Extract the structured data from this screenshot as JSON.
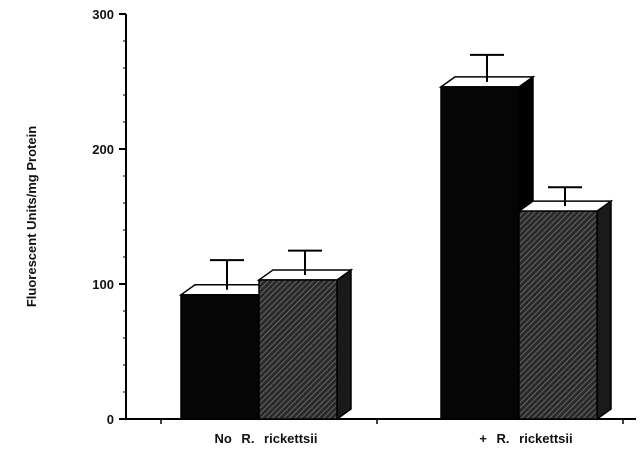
{
  "chart_data": {
    "type": "bar",
    "title": "",
    "ylabel": "Fluorescent  Units/mg  Protein",
    "xlabel": "",
    "ylim": [
      0,
      300
    ],
    "yticks": [
      "0",
      "100",
      "200",
      "300"
    ],
    "categories": [
      "No  R.  rickettsii",
      "+  R.  rickettsii"
    ],
    "series": [
      {
        "values": [
          92,
          246
        ],
        "errors": [
          22,
          20
        ],
        "fill": "solid-black"
      },
      {
        "values": [
          103,
          154
        ],
        "errors": [
          18,
          14
        ],
        "fill": "dark-hatched"
      }
    ],
    "grid": false,
    "legend": "none"
  }
}
